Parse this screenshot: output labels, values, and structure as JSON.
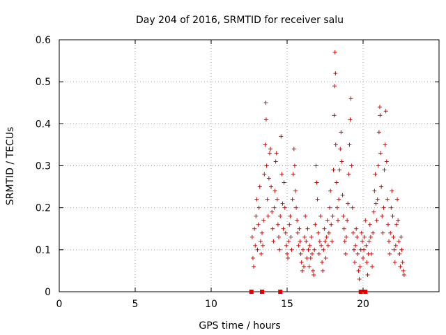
{
  "chart_data": {
    "type": "scatter",
    "title": "Day 204 of 2016, SRMTID for receiver salu",
    "xlabel": "GPS time / hours",
    "ylabel": "SRMTID / TECUs",
    "xlim": [
      0,
      25
    ],
    "ylim": [
      0,
      0.6
    ],
    "x_ticks": [
      0,
      5,
      10,
      15,
      20
    ],
    "x_tick_labels": [
      "0",
      "5",
      "10",
      "15",
      "20"
    ],
    "y_ticks": [
      0,
      0.1,
      0.2,
      0.3,
      0.4,
      0.5,
      0.6
    ],
    "y_tick_labels": [
      "0",
      "0.1",
      "0.2",
      "0.3",
      "0.4",
      "0.5",
      "0.6"
    ],
    "grid": true,
    "marker": "+",
    "color": "#e00000",
    "zero_markers": [
      12.65,
      13.35,
      14.55,
      19.85,
      20.15
    ],
    "series": [
      {
        "name": "SRMTID",
        "points": [
          [
            12.7,
            0.13
          ],
          [
            12.75,
            0.08
          ],
          [
            12.8,
            0.06
          ],
          [
            12.85,
            0.15
          ],
          [
            12.9,
            0.11
          ],
          [
            12.95,
            0.18
          ],
          [
            13.0,
            0.22
          ],
          [
            13.05,
            0.1
          ],
          [
            13.1,
            0.16
          ],
          [
            13.15,
            0.2
          ],
          [
            13.2,
            0.25
          ],
          [
            13.25,
            0.12
          ],
          [
            13.3,
            0.09
          ],
          [
            13.35,
            0.14
          ],
          [
            13.4,
            0.11
          ],
          [
            13.45,
            0.17
          ],
          [
            13.5,
            0.28
          ],
          [
            13.55,
            0.35
          ],
          [
            13.6,
            0.45
          ],
          [
            13.62,
            0.41
          ],
          [
            13.65,
            0.3
          ],
          [
            13.7,
            0.22
          ],
          [
            13.75,
            0.18
          ],
          [
            13.8,
            0.27
          ],
          [
            13.85,
            0.33
          ],
          [
            13.9,
            0.34
          ],
          [
            13.95,
            0.25
          ],
          [
            14.0,
            0.19
          ],
          [
            14.05,
            0.15
          ],
          [
            14.1,
            0.12
          ],
          [
            14.15,
            0.2
          ],
          [
            14.2,
            0.24
          ],
          [
            14.25,
            0.31
          ],
          [
            14.3,
            0.33
          ],
          [
            14.35,
            0.22
          ],
          [
            14.4,
            0.16
          ],
          [
            14.45,
            0.13
          ],
          [
            14.5,
            0.1
          ],
          [
            14.55,
            0.18
          ],
          [
            14.6,
            0.37
          ],
          [
            14.65,
            0.28
          ],
          [
            14.7,
            0.21
          ],
          [
            14.75,
            0.15
          ],
          [
            14.8,
            0.26
          ],
          [
            14.85,
            0.2
          ],
          [
            14.9,
            0.14
          ],
          [
            14.95,
            0.11
          ],
          [
            15.0,
            0.09
          ],
          [
            15.05,
            0.08
          ],
          [
            15.1,
            0.12
          ],
          [
            15.15,
            0.16
          ],
          [
            15.2,
            0.18
          ],
          [
            15.25,
            0.13
          ],
          [
            15.3,
            0.1
          ],
          [
            15.35,
            0.22
          ],
          [
            15.4,
            0.28
          ],
          [
            15.45,
            0.34
          ],
          [
            15.5,
            0.3
          ],
          [
            15.55,
            0.24
          ],
          [
            15.6,
            0.2
          ],
          [
            15.65,
            0.17
          ],
          [
            15.7,
            0.14
          ],
          [
            15.75,
            0.11
          ],
          [
            15.8,
            0.15
          ],
          [
            15.85,
            0.12
          ],
          [
            15.9,
            0.09
          ],
          [
            15.95,
            0.07
          ],
          [
            16.0,
            0.05
          ],
          [
            16.05,
            0.1
          ],
          [
            16.1,
            0.06
          ],
          [
            16.15,
            0.13
          ],
          [
            16.2,
            0.18
          ],
          [
            16.25,
            0.12
          ],
          [
            16.3,
            0.08
          ],
          [
            16.35,
            0.15
          ],
          [
            16.4,
            0.1
          ],
          [
            16.45,
            0.06
          ],
          [
            16.5,
            0.11
          ],
          [
            16.55,
            0.08
          ],
          [
            16.6,
            0.13
          ],
          [
            16.65,
            0.09
          ],
          [
            16.7,
            0.05
          ],
          [
            16.75,
            0.04
          ],
          [
            16.8,
            0.1
          ],
          [
            16.85,
            0.16
          ],
          [
            16.9,
            0.3
          ],
          [
            16.95,
            0.26
          ],
          [
            17.0,
            0.22
          ],
          [
            17.05,
            0.14
          ],
          [
            17.1,
            0.09
          ],
          [
            17.15,
            0.12
          ],
          [
            17.2,
            0.18
          ],
          [
            17.25,
            0.11
          ],
          [
            17.3,
            0.07
          ],
          [
            17.35,
            0.05
          ],
          [
            17.4,
            0.1
          ],
          [
            17.45,
            0.15
          ],
          [
            17.5,
            0.12
          ],
          [
            17.55,
            0.08
          ],
          [
            17.6,
            0.13
          ],
          [
            17.65,
            0.17
          ],
          [
            17.7,
            0.11
          ],
          [
            17.75,
            0.14
          ],
          [
            17.8,
            0.2
          ],
          [
            17.85,
            0.24
          ],
          [
            17.9,
            0.16
          ],
          [
            17.95,
            0.12
          ],
          [
            18.0,
            0.18
          ],
          [
            18.05,
            0.29
          ],
          [
            18.1,
            0.42
          ],
          [
            18.12,
            0.49
          ],
          [
            18.15,
            0.57
          ],
          [
            18.18,
            0.52
          ],
          [
            18.2,
            0.35
          ],
          [
            18.25,
            0.26
          ],
          [
            18.3,
            0.2
          ],
          [
            18.35,
            0.17
          ],
          [
            18.4,
            0.22
          ],
          [
            18.45,
            0.29
          ],
          [
            18.5,
            0.34
          ],
          [
            18.55,
            0.38
          ],
          [
            18.6,
            0.31
          ],
          [
            18.65,
            0.23
          ],
          [
            18.7,
            0.18
          ],
          [
            18.75,
            0.15
          ],
          [
            18.8,
            0.12
          ],
          [
            18.85,
            0.09
          ],
          [
            18.9,
            0.13
          ],
          [
            18.95,
            0.17
          ],
          [
            19.0,
            0.21
          ],
          [
            19.05,
            0.28
          ],
          [
            19.1,
            0.35
          ],
          [
            19.15,
            0.41
          ],
          [
            19.2,
            0.46
          ],
          [
            19.25,
            0.3
          ],
          [
            19.3,
            0.2
          ],
          [
            19.35,
            0.14
          ],
          [
            19.4,
            0.1
          ],
          [
            19.45,
            0.07
          ],
          [
            19.5,
            0.11
          ],
          [
            19.55,
            0.15
          ],
          [
            19.6,
            0.13
          ],
          [
            19.65,
            0.09
          ],
          [
            19.7,
            0.05
          ],
          [
            19.75,
            0.03
          ],
          [
            19.8,
            0.06
          ],
          [
            19.85,
            0.1
          ],
          [
            19.9,
            0.14
          ],
          [
            19.95,
            0.12
          ],
          [
            20.0,
            0.08
          ],
          [
            20.05,
            0.1
          ],
          [
            20.1,
            0.13
          ],
          [
            20.15,
            0.17
          ],
          [
            20.2,
            0.11
          ],
          [
            20.25,
            0.07
          ],
          [
            20.3,
            0.04
          ],
          [
            20.35,
            0.09
          ],
          [
            20.4,
            0.12
          ],
          [
            20.45,
            0.16
          ],
          [
            20.5,
            0.13
          ],
          [
            20.55,
            0.09
          ],
          [
            20.6,
            0.06
          ],
          [
            20.65,
            0.14
          ],
          [
            20.7,
            0.19
          ],
          [
            20.75,
            0.24
          ],
          [
            20.8,
            0.28
          ],
          [
            20.85,
            0.21
          ],
          [
            20.9,
            0.17
          ],
          [
            20.95,
            0.22
          ],
          [
            21.0,
            0.3
          ],
          [
            21.05,
            0.38
          ],
          [
            21.1,
            0.44
          ],
          [
            21.12,
            0.42
          ],
          [
            21.15,
            0.33
          ],
          [
            21.2,
            0.25
          ],
          [
            21.25,
            0.18
          ],
          [
            21.3,
            0.14
          ],
          [
            21.35,
            0.2
          ],
          [
            21.4,
            0.29
          ],
          [
            21.45,
            0.35
          ],
          [
            21.5,
            0.43
          ],
          [
            21.55,
            0.31
          ],
          [
            21.6,
            0.22
          ],
          [
            21.65,
            0.16
          ],
          [
            21.7,
            0.12
          ],
          [
            21.75,
            0.09
          ],
          [
            21.8,
            0.14
          ],
          [
            21.85,
            0.2
          ],
          [
            21.9,
            0.24
          ],
          [
            21.95,
            0.18
          ],
          [
            22.0,
            0.13
          ],
          [
            22.05,
            0.1
          ],
          [
            22.1,
            0.07
          ],
          [
            22.15,
            0.11
          ],
          [
            22.2,
            0.16
          ],
          [
            22.25,
            0.22
          ],
          [
            22.3,
            0.17
          ],
          [
            22.35,
            0.12
          ],
          [
            22.4,
            0.09
          ],
          [
            22.45,
            0.06
          ],
          [
            22.5,
            0.13
          ],
          [
            22.55,
            0.1
          ],
          [
            22.6,
            0.07
          ],
          [
            22.65,
            0.05
          ],
          [
            22.7,
            0.04
          ]
        ]
      }
    ]
  }
}
